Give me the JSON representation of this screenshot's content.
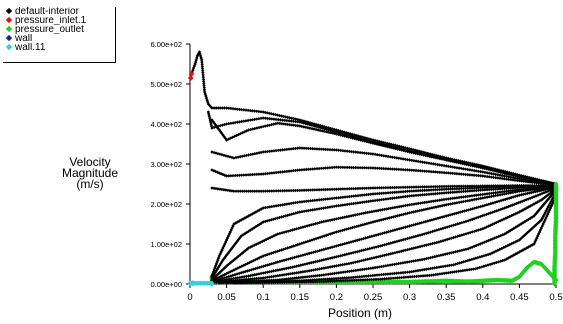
{
  "legend": [
    {
      "label": "default-interior",
      "color": "#000000"
    },
    {
      "label": "pressure_inlet.1",
      "color": "#e01010"
    },
    {
      "label": "pressure_outlet",
      "color": "#20d020"
    },
    {
      "label": "wall",
      "color": "#1020c0"
    },
    {
      "label": "wall.11",
      "color": "#30d0e0"
    }
  ],
  "chart_data": {
    "type": "scatter",
    "title": "",
    "xlabel": "Position (m)",
    "ylabel_lines": [
      "Velocity",
      "Magnitude",
      "(m/s)"
    ],
    "xlim": [
      0,
      0.5
    ],
    "ylim": [
      0,
      600
    ],
    "x_ticks": [
      {
        "value": 0,
        "label": "0"
      },
      {
        "value": 0.05,
        "label": "0.05"
      },
      {
        "value": 0.1,
        "label": "0.1"
      },
      {
        "value": 0.15,
        "label": "0.15"
      },
      {
        "value": 0.2,
        "label": "0.2"
      },
      {
        "value": 0.25,
        "label": "0.25"
      },
      {
        "value": 0.3,
        "label": "0.3"
      },
      {
        "value": 0.35,
        "label": "0.35"
      },
      {
        "value": 0.4,
        "label": "0.4"
      },
      {
        "value": 0.45,
        "label": "0.45"
      },
      {
        "value": 0.5,
        "label": "0.5"
      }
    ],
    "y_ticks": [
      {
        "value": 0,
        "label": "0.00e+00"
      },
      {
        "value": 100,
        "label": "1.00e+02"
      },
      {
        "value": 200,
        "label": "2.00e+02"
      },
      {
        "value": 300,
        "label": "3.00e+02"
      },
      {
        "value": 400,
        "label": "4.00e+02"
      },
      {
        "value": 500,
        "label": "5.00e+02"
      },
      {
        "value": 600,
        "label": "6.00e+02"
      }
    ],
    "series": [
      {
        "name": "default-interior",
        "color": "#000000",
        "curves": [
          [
            [
              0.003,
              530
            ],
            [
              0.007,
              550
            ],
            [
              0.01,
              570
            ],
            [
              0.013,
              580
            ],
            [
              0.016,
              560
            ],
            [
              0.02,
              480
            ],
            [
              0.025,
              450
            ],
            [
              0.03,
              440
            ],
            [
              0.05,
              440
            ],
            [
              0.1,
              430
            ],
            [
              0.15,
              410
            ],
            [
              0.2,
              385
            ],
            [
              0.25,
              360
            ],
            [
              0.3,
              338
            ],
            [
              0.35,
              315
            ],
            [
              0.4,
              295
            ],
            [
              0.45,
              272
            ],
            [
              0.5,
              250
            ]
          ],
          [
            [
              0.025,
              430
            ],
            [
              0.03,
              390
            ],
            [
              0.05,
              400
            ],
            [
              0.1,
              415
            ],
            [
              0.15,
              405
            ],
            [
              0.2,
              380
            ],
            [
              0.25,
              355
            ],
            [
              0.3,
              333
            ],
            [
              0.35,
              312
            ],
            [
              0.4,
              292
            ],
            [
              0.45,
              270
            ],
            [
              0.5,
              250
            ]
          ],
          [
            [
              0.03,
              410
            ],
            [
              0.05,
              360
            ],
            [
              0.08,
              385
            ],
            [
              0.12,
              402
            ],
            [
              0.15,
              395
            ],
            [
              0.2,
              375
            ],
            [
              0.25,
              352
            ],
            [
              0.3,
              330
            ],
            [
              0.35,
              310
            ],
            [
              0.4,
              290
            ],
            [
              0.45,
              268
            ],
            [
              0.5,
              250
            ]
          ],
          [
            [
              0.03,
              330
            ],
            [
              0.06,
              315
            ],
            [
              0.1,
              330
            ],
            [
              0.15,
              340
            ],
            [
              0.2,
              335
            ],
            [
              0.25,
              325
            ],
            [
              0.3,
              310
            ],
            [
              0.35,
              295
            ],
            [
              0.4,
              280
            ],
            [
              0.45,
              263
            ],
            [
              0.5,
              248
            ]
          ],
          [
            [
              0.03,
              285
            ],
            [
              0.05,
              270
            ],
            [
              0.1,
              275
            ],
            [
              0.15,
              285
            ],
            [
              0.2,
              292
            ],
            [
              0.25,
              290
            ],
            [
              0.3,
              285
            ],
            [
              0.35,
              278
            ],
            [
              0.4,
              270
            ],
            [
              0.45,
              258
            ],
            [
              0.5,
              247
            ]
          ],
          [
            [
              0.03,
              240
            ],
            [
              0.06,
              232
            ],
            [
              0.1,
              232
            ],
            [
              0.15,
              234
            ],
            [
              0.2,
              237
            ],
            [
              0.25,
              240
            ],
            [
              0.3,
              242
            ],
            [
              0.35,
              244
            ],
            [
              0.4,
              245
            ],
            [
              0.45,
              246
            ],
            [
              0.5,
              246
            ]
          ],
          [
            [
              0.03,
              20
            ],
            [
              0.04,
              70
            ],
            [
              0.06,
              150
            ],
            [
              0.1,
              190
            ],
            [
              0.15,
              205
            ],
            [
              0.2,
              215
            ],
            [
              0.25,
              225
            ],
            [
              0.3,
              232
            ],
            [
              0.35,
              237
            ],
            [
              0.4,
              241
            ],
            [
              0.45,
              244
            ],
            [
              0.5,
              246
            ]
          ],
          [
            [
              0.03,
              15
            ],
            [
              0.045,
              60
            ],
            [
              0.07,
              120
            ],
            [
              0.1,
              155
            ],
            [
              0.15,
              180
            ],
            [
              0.2,
              195
            ],
            [
              0.25,
              208
            ],
            [
              0.3,
              220
            ],
            [
              0.35,
              228
            ],
            [
              0.4,
              235
            ],
            [
              0.45,
              241
            ],
            [
              0.5,
              245
            ]
          ],
          [
            [
              0.03,
              10
            ],
            [
              0.05,
              45
            ],
            [
              0.08,
              90
            ],
            [
              0.12,
              125
            ],
            [
              0.18,
              155
            ],
            [
              0.24,
              178
            ],
            [
              0.3,
              198
            ],
            [
              0.35,
              212
            ],
            [
              0.4,
              224
            ],
            [
              0.45,
              236
            ],
            [
              0.5,
              244
            ]
          ],
          [
            [
              0.03,
              8
            ],
            [
              0.06,
              35
            ],
            [
              0.1,
              70
            ],
            [
              0.15,
              100
            ],
            [
              0.2,
              130
            ],
            [
              0.25,
              155
            ],
            [
              0.3,
              178
            ],
            [
              0.35,
              198
            ],
            [
              0.4,
              215
            ],
            [
              0.45,
              232
            ],
            [
              0.5,
              243
            ]
          ],
          [
            [
              0.03,
              6
            ],
            [
              0.07,
              28
            ],
            [
              0.12,
              55
            ],
            [
              0.18,
              85
            ],
            [
              0.24,
              115
            ],
            [
              0.3,
              145
            ],
            [
              0.35,
              170
            ],
            [
              0.4,
              195
            ],
            [
              0.45,
              222
            ],
            [
              0.5,
              242
            ]
          ],
          [
            [
              0.03,
              5
            ],
            [
              0.08,
              20
            ],
            [
              0.14,
              42
            ],
            [
              0.2,
              68
            ],
            [
              0.26,
              95
            ],
            [
              0.32,
              125
            ],
            [
              0.38,
              158
            ],
            [
              0.43,
              190
            ],
            [
              0.47,
              218
            ],
            [
              0.5,
              240
            ]
          ],
          [
            [
              0.03,
              4
            ],
            [
              0.1,
              15
            ],
            [
              0.16,
              32
            ],
            [
              0.22,
              52
            ],
            [
              0.28,
              78
            ],
            [
              0.34,
              105
            ],
            [
              0.4,
              138
            ],
            [
              0.45,
              180
            ],
            [
              0.48,
              210
            ],
            [
              0.5,
              238
            ]
          ],
          [
            [
              0.04,
              3
            ],
            [
              0.12,
              10
            ],
            [
              0.18,
              22
            ],
            [
              0.25,
              40
            ],
            [
              0.32,
              62
            ],
            [
              0.38,
              88
            ],
            [
              0.43,
              125
            ],
            [
              0.47,
              170
            ],
            [
              0.5,
              235
            ]
          ],
          [
            [
              0.05,
              3
            ],
            [
              0.15,
              8
            ],
            [
              0.22,
              16
            ],
            [
              0.3,
              30
            ],
            [
              0.36,
              48
            ],
            [
              0.41,
              75
            ],
            [
              0.45,
              110
            ],
            [
              0.48,
              160
            ],
            [
              0.5,
              230
            ]
          ],
          [
            [
              0.06,
              2
            ],
            [
              0.18,
              6
            ],
            [
              0.26,
              12
            ],
            [
              0.33,
              22
            ],
            [
              0.39,
              38
            ],
            [
              0.43,
              60
            ],
            [
              0.47,
              100
            ],
            [
              0.5,
              220
            ]
          ]
        ]
      },
      {
        "name": "pressure_inlet.1",
        "color": "#e01010",
        "points": [
          [
            0.001,
            515
          ],
          [
            0.002,
            525
          ]
        ]
      },
      {
        "name": "pressure_outlet",
        "color": "#20d020",
        "curves": [
          [
            [
              0.498,
              0
            ],
            [
              0.498,
              40
            ],
            [
              0.499,
              80
            ],
            [
              0.499,
              120
            ],
            [
              0.5,
              160
            ],
            [
              0.5,
              200
            ],
            [
              0.5,
              240
            ],
            [
              0.5,
              250
            ]
          ]
        ]
      },
      {
        "name": "wall",
        "color": "#1020c0",
        "points": [
          [
            0.004,
            2
          ]
        ]
      },
      {
        "name": "wall.11",
        "color": "#30d0e0",
        "curves": [
          [
            [
              0,
              2
            ],
            [
              0.01,
              2
            ],
            [
              0.02,
              2
            ],
            [
              0.03,
              2
            ]
          ]
        ]
      }
    ],
    "green_floor": [
      [
        0.03,
        0
      ],
      [
        0.03,
        20
      ],
      [
        0.032,
        8
      ],
      [
        0.05,
        5
      ],
      [
        0.1,
        5
      ],
      [
        0.2,
        5
      ],
      [
        0.3,
        5
      ],
      [
        0.35,
        8
      ],
      [
        0.38,
        6
      ],
      [
        0.4,
        8
      ],
      [
        0.42,
        10
      ],
      [
        0.44,
        8
      ],
      [
        0.45,
        18
      ],
      [
        0.46,
        40
      ],
      [
        0.47,
        55
      ],
      [
        0.48,
        50
      ],
      [
        0.49,
        30
      ],
      [
        0.5,
        10
      ]
    ],
    "grid": false,
    "legend_position": "top-left"
  }
}
